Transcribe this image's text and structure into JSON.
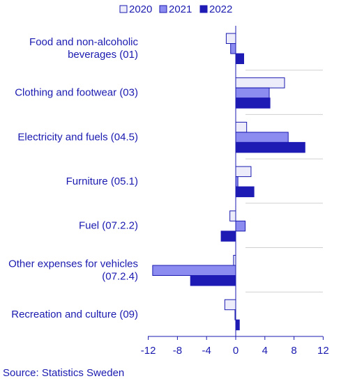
{
  "chart_data": {
    "type": "bar",
    "orientation": "horizontal",
    "categories": [
      [
        "Food and non-alcoholic",
        "beverages (01)"
      ],
      [
        "Clothing and footwear (03)"
      ],
      [
        "Electricity and fuels (04.5)"
      ],
      [
        "Furniture (05.1)"
      ],
      [
        "Fuel (07.2.2)"
      ],
      [
        "Other expenses for vehicles",
        "(07.2.4)"
      ],
      [
        "Recreation and culture (09)"
      ]
    ],
    "series": [
      {
        "name": "2020",
        "color": "#ececfb",
        "stroke": "#1a1ab0",
        "values": [
          -1.3,
          6.7,
          1.5,
          2.1,
          -0.8,
          -0.3,
          -1.5
        ]
      },
      {
        "name": "2021",
        "color": "#8c8cf0",
        "stroke": "#1a1ab0",
        "values": [
          -0.7,
          4.6,
          7.2,
          0.3,
          1.3,
          -11.4,
          -0.1
        ]
      },
      {
        "name": "2022",
        "color": "#1e1ab4",
        "stroke": "#1e1ab4",
        "values": [
          1.1,
          4.7,
          9.5,
          2.5,
          -2.0,
          -6.2,
          0.5
        ]
      }
    ],
    "xlim": [
      -12,
      12
    ],
    "xticks": [
      "-12",
      "-8",
      "-4",
      "0",
      "4",
      "8",
      "12"
    ],
    "legend_position": "top",
    "grid": "category separators",
    "axis_color": "#1a1ab0"
  },
  "source": "Source: Statistics Sweden"
}
